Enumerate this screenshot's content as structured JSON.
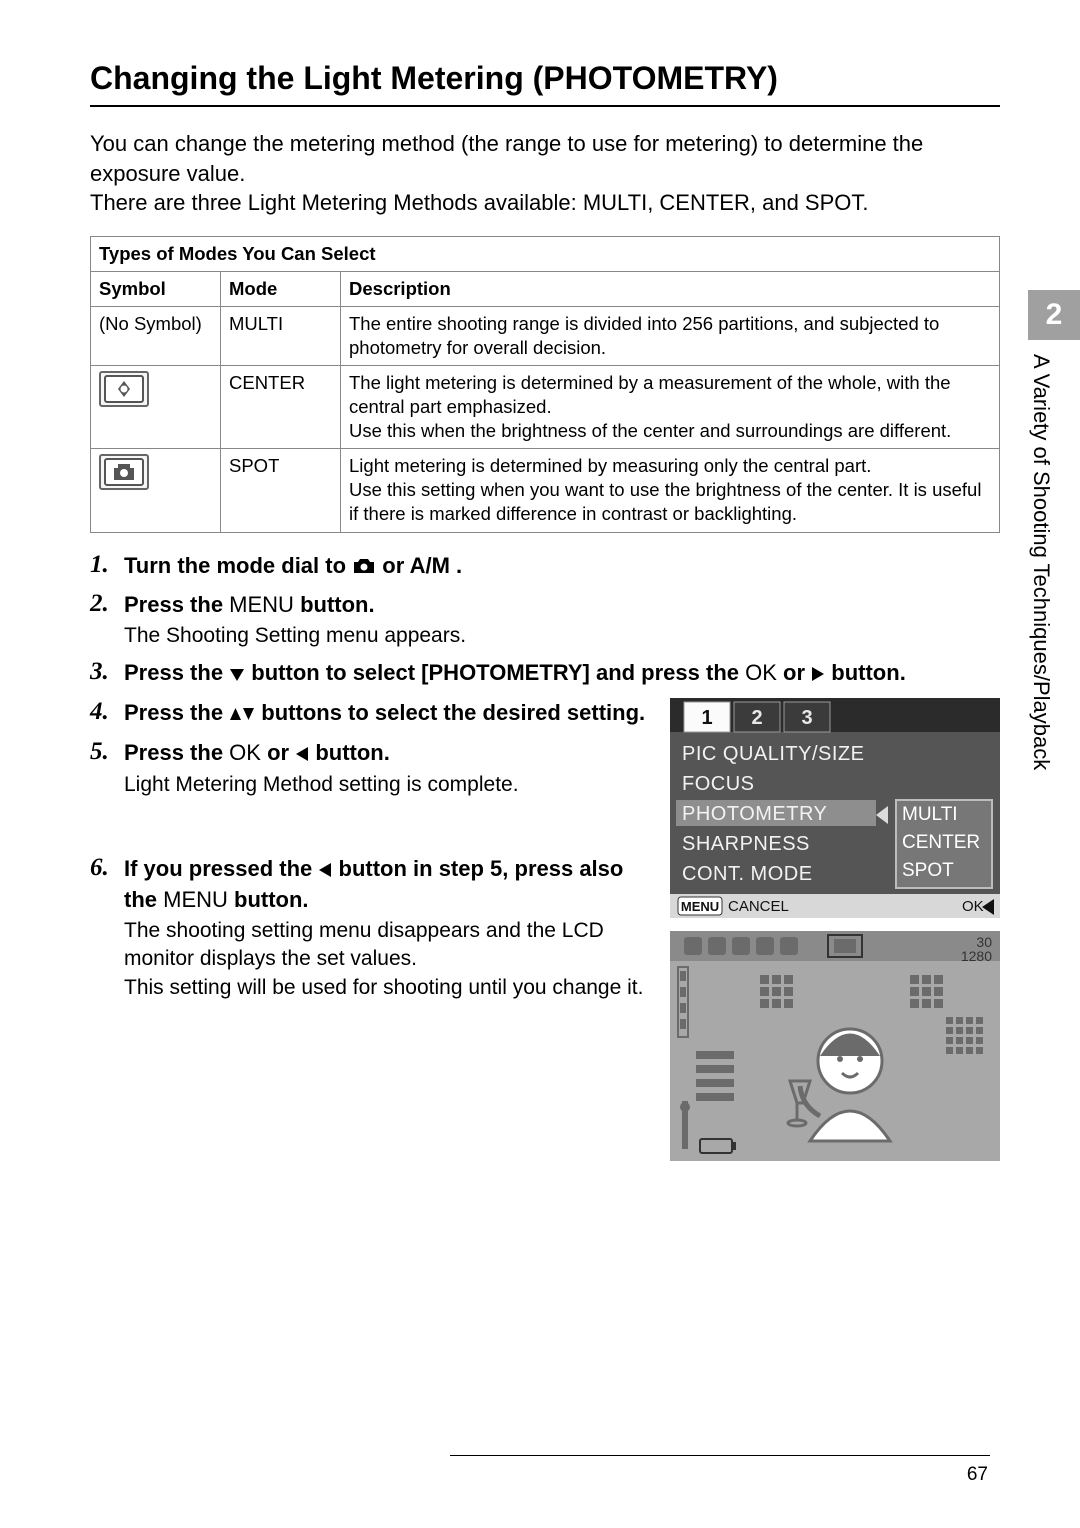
{
  "page": {
    "title": "Changing the Light Metering (PHOTOMETRY)",
    "intro": "You can change the metering method (the range to use for metering) to determine the exposure value.\nThere are three Light Metering Methods available: MULTI, CENTER, and SPOT.",
    "number": "67"
  },
  "sidetab": {
    "chapter_number": "2",
    "chapter_title": "A Variety of Shooting Techniques/Playback"
  },
  "table": {
    "title": "Types of Modes You Can Select",
    "headers": {
      "symbol": "Symbol",
      "mode": "Mode",
      "description": "Description"
    },
    "rows": [
      {
        "symbol_text": "(No Symbol)",
        "symbol_kind": "none",
        "mode": "MULTI",
        "desc": "The entire shooting range is divided into 256 partitions, and subjected to photometry for overall decision."
      },
      {
        "symbol_text": "",
        "symbol_kind": "center",
        "mode": "CENTER",
        "desc": "The light metering is determined by a measurement of the whole, with the central part emphasized.\nUse this when the brightness of the center and surroundings are different."
      },
      {
        "symbol_text": "",
        "symbol_kind": "spot",
        "mode": "SPOT",
        "desc": "Light metering is determined by measuring only the central part.\nUse this setting when you want to use the brightness of the center. It is useful if there is marked difference in contrast or backlighting."
      }
    ]
  },
  "steps": {
    "s1": {
      "n": "1",
      "a": "Turn the mode dial to ",
      "b": " or A/M ."
    },
    "s2": {
      "n": "2",
      "a": "Press the ",
      "menu": "MENU",
      "b": " button.",
      "body": "The Shooting Setting menu appears."
    },
    "s3": {
      "n": "3",
      "a": "Press the ",
      "b": " button to select [PHOTOMETRY] and press the ",
      "ok": "OK",
      "c": " or ",
      "d": " button."
    },
    "s4": {
      "n": "4",
      "a": "Press the ",
      "b": " buttons to select the desired setting."
    },
    "s5": {
      "n": "5",
      "a": "Press the ",
      "ok": "OK",
      "b": " or ",
      "c": " button.",
      "body": "Light Metering Method setting is complete."
    },
    "s6": {
      "n": "6",
      "a": "If you pressed the ",
      "b": " button in step 5, press also the ",
      "menu": "MENU",
      "c": " button.",
      "body": "The shooting setting menu disappears and the LCD monitor displays the set values.\nThis setting will be used for shooting until you change it."
    }
  },
  "screen1": {
    "tabs": [
      "1",
      "2",
      "3"
    ],
    "items": [
      "PIC QUALITY/SIZE",
      "FOCUS",
      "PHOTOMETRY",
      "SHARPNESS",
      "CONT. MODE"
    ],
    "selected_index": 2,
    "options": [
      "MULTI",
      "CENTER",
      "SPOT"
    ],
    "footer_left_badge": "MENU",
    "footer_left": "CANCEL",
    "footer_right": "OK",
    "colors": {
      "bg": "#555555",
      "header_bg": "#2b2b2b",
      "tab_sel_bg": "#fbfbfb",
      "tab_sel_fg": "#111",
      "tab_bg": "#3b3b3b",
      "tab_fg": "#e8e8e8",
      "item_fg": "#f2f2f2",
      "opt_bg": "#777777",
      "opt_border": "#bcbcbc",
      "sel_bar": "#8e8e8e",
      "footer_bg": "#d8d8d8",
      "footer_fg": "#111",
      "arrow": "#dcdcdc",
      "white": "#ffffff"
    }
  },
  "screen2": {
    "top_right": [
      "30",
      "1280"
    ],
    "colors": {
      "bg": "#a8a8a8",
      "fg": "#6b6b6b",
      "white": "#fff",
      "dark": "#333",
      "edge": "#8a8a8a"
    }
  }
}
